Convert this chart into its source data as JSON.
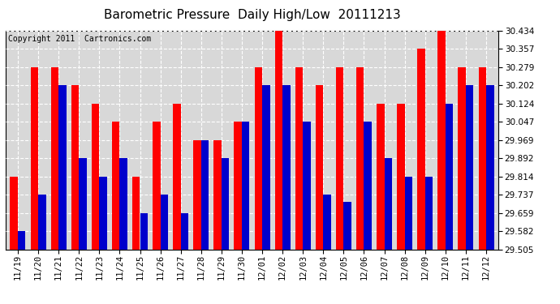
{
  "title": "Barometric Pressure  Daily High/Low  20111213",
  "copyright": "Copyright 2011  Cartronics.com",
  "categories": [
    "11/19",
    "11/20",
    "11/21",
    "11/22",
    "11/23",
    "11/24",
    "11/25",
    "11/26",
    "11/27",
    "11/28",
    "11/29",
    "11/30",
    "12/01",
    "12/02",
    "12/03",
    "12/04",
    "12/05",
    "12/06",
    "12/07",
    "12/08",
    "12/09",
    "12/10",
    "12/11",
    "12/12"
  ],
  "highs": [
    29.814,
    30.279,
    30.279,
    30.202,
    30.124,
    30.047,
    29.814,
    30.047,
    30.124,
    29.969,
    29.969,
    30.047,
    30.279,
    30.434,
    30.279,
    30.202,
    30.279,
    30.279,
    30.124,
    30.124,
    30.357,
    30.434,
    30.279,
    30.279
  ],
  "lows": [
    29.582,
    29.737,
    30.202,
    29.892,
    29.814,
    29.892,
    29.659,
    29.737,
    29.659,
    29.969,
    29.892,
    30.047,
    30.202,
    30.202,
    30.047,
    29.737,
    29.705,
    30.047,
    29.892,
    29.814,
    29.814,
    30.124,
    30.202,
    30.202
  ],
  "high_color": "#ff0000",
  "low_color": "#0000cc",
  "bg_color": "#ffffff",
  "plot_bg_color": "#d8d8d8",
  "grid_color": "#ffffff",
  "ylim_min": 29.505,
  "ylim_max": 30.434,
  "yticks": [
    29.505,
    29.582,
    29.659,
    29.737,
    29.814,
    29.892,
    29.969,
    30.047,
    30.124,
    30.202,
    30.279,
    30.357,
    30.434
  ],
  "bar_width": 0.38,
  "title_fontsize": 11,
  "copyright_fontsize": 7,
  "tick_fontsize": 7.5
}
